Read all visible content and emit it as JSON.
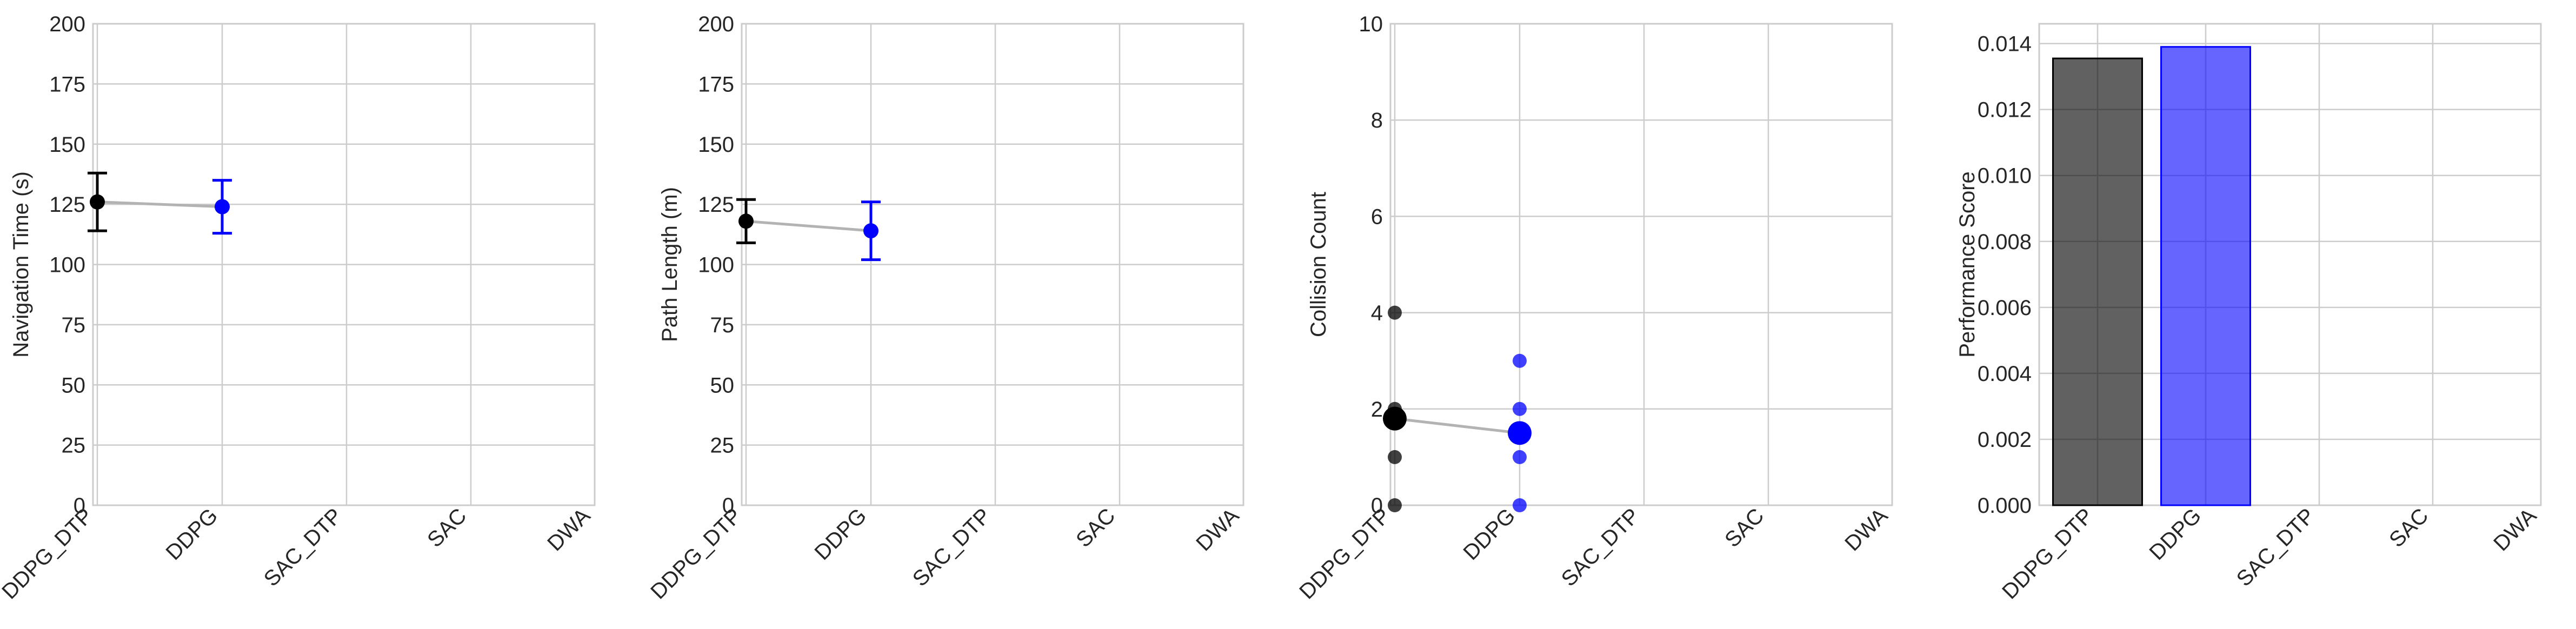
{
  "colors": {
    "ddpg_dtp": "#000000",
    "ddpg": "#0000ff",
    "connector": "#b3b3b3",
    "grid": "#cccccc",
    "axes_edge": "#cccccc",
    "text": "#262626"
  },
  "chart_data": [
    {
      "type": "scatter",
      "ylabel": "Navigation Time (s)",
      "categories": [
        "DDPG_DTP",
        "DDPG",
        "SAC_DTP",
        "SAC",
        "DWA"
      ],
      "ylim": [
        0,
        200
      ],
      "yticks": [
        0,
        25,
        50,
        75,
        100,
        125,
        150,
        175,
        200
      ],
      "ytick_labels": [
        "0",
        "25",
        "50",
        "75",
        "100",
        "125",
        "150",
        "175",
        "200"
      ],
      "grid": true,
      "points": [
        {
          "category": "DDPG_DTP",
          "mean": 126,
          "err_low": 114,
          "err_high": 138,
          "color": "#000000"
        },
        {
          "category": "DDPG",
          "mean": 124,
          "err_low": 113,
          "err_high": 135,
          "color": "#0000ff"
        }
      ]
    },
    {
      "type": "scatter",
      "ylabel": "Path Length (m)",
      "categories": [
        "DDPG_DTP",
        "DDPG",
        "SAC_DTP",
        "SAC",
        "DWA"
      ],
      "ylim": [
        0,
        200
      ],
      "yticks": [
        0,
        25,
        50,
        75,
        100,
        125,
        150,
        175,
        200
      ],
      "ytick_labels": [
        "0",
        "25",
        "50",
        "75",
        "100",
        "125",
        "150",
        "175",
        "200"
      ],
      "grid": true,
      "points": [
        {
          "category": "DDPG_DTP",
          "mean": 118,
          "err_low": 109,
          "err_high": 127,
          "color": "#000000"
        },
        {
          "category": "DDPG",
          "mean": 114,
          "err_low": 102,
          "err_high": 126,
          "color": "#0000ff"
        }
      ]
    },
    {
      "type": "scatter",
      "ylabel": "Collision Count",
      "categories": [
        "DDPG_DTP",
        "DDPG",
        "SAC_DTP",
        "SAC",
        "DWA"
      ],
      "ylim": [
        0,
        10
      ],
      "yticks": [
        0,
        2,
        4,
        6,
        8,
        10
      ],
      "ytick_labels": [
        "0",
        "2",
        "4",
        "6",
        "8",
        "10"
      ],
      "grid": true,
      "means": [
        {
          "category": "DDPG_DTP",
          "value": 1.8,
          "color": "#000000"
        },
        {
          "category": "DDPG",
          "value": 1.5,
          "color": "#0000ff"
        }
      ],
      "individual_points": [
        {
          "category": "DDPG_DTP",
          "values": [
            4,
            2,
            1.9,
            1.8,
            1,
            0
          ],
          "color": "#000000"
        },
        {
          "category": "DDPG",
          "values": [
            3,
            2,
            1,
            0
          ],
          "color": "#0000ff"
        }
      ]
    },
    {
      "type": "bar",
      "ylabel": "Performance Score",
      "categories": [
        "DDPG_DTP",
        "DDPG",
        "SAC_DTP",
        "SAC",
        "DWA"
      ],
      "values": [
        0.01355,
        0.0139,
        null,
        null,
        null
      ],
      "bar_colors": [
        "#000000",
        "#0000ff",
        null,
        null,
        null
      ],
      "ylim": [
        0,
        0.0146
      ],
      "yticks": [
        0,
        0.002,
        0.004,
        0.006,
        0.008,
        0.01,
        0.012,
        0.014
      ],
      "ytick_labels": [
        "0.000",
        "0.002",
        "0.004",
        "0.006",
        "0.008",
        "0.010",
        "0.012",
        "0.014"
      ],
      "grid": true
    }
  ]
}
